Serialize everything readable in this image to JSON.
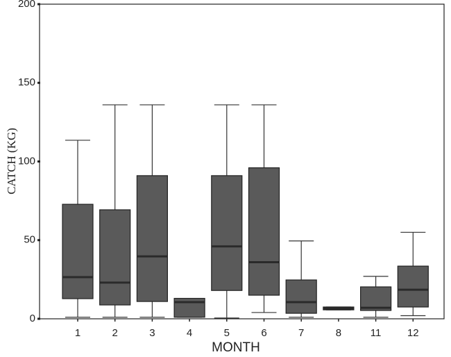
{
  "chart_data": {
    "type": "box",
    "x_label": "MONTH",
    "y_label": "CATCH (KG)",
    "categories": [
      "1",
      "2",
      "3",
      "4",
      "5",
      "6",
      "7",
      "8",
      "11",
      "12"
    ],
    "boxes": [
      {
        "min": 1,
        "q1": 12.8,
        "median": 26.5,
        "q3": 72.8,
        "max": 113.5
      },
      {
        "min": 1,
        "q1": 8.8,
        "median": 23,
        "q3": 69.3,
        "max": 136
      },
      {
        "min": 1,
        "q1": 11,
        "median": 39.7,
        "q3": 91,
        "max": 136
      },
      {
        "min": 1,
        "q1": 1,
        "median": 10.6,
        "q3": 13,
        "max": 13
      },
      {
        "min": 0.5,
        "q1": 18,
        "median": 46,
        "q3": 91,
        "max": 136
      },
      {
        "min": 4,
        "q1": 15,
        "median": 36,
        "q3": 96,
        "max": 136
      },
      {
        "min": 1,
        "q1": 3.5,
        "median": 10.6,
        "q3": 24.7,
        "max": 49.5
      },
      {
        "min": 5.7,
        "q1": 5.7,
        "median": 6.6,
        "q3": 7.5,
        "max": 7.5
      },
      {
        "min": 1,
        "q1": 5.3,
        "median": 7,
        "q3": 20.3,
        "max": 27
      },
      {
        "min": 2,
        "q1": 7.5,
        "median": 18.5,
        "q3": 33.5,
        "max": 55
      }
    ],
    "color": "#5a5a5a",
    "median_color": "#2a2a2a",
    "ylim": [
      0,
      200
    ],
    "yticks": [
      0,
      50,
      100,
      150,
      200
    ]
  }
}
